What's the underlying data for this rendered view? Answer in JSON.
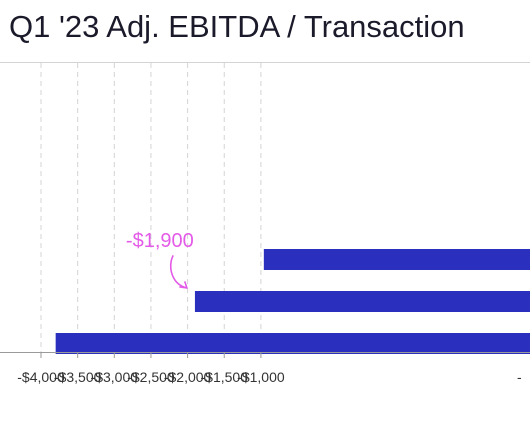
{
  "colors": {
    "bar": "#2b2fbd",
    "annotation": "#e45ae8",
    "grid": "#d4d4d4",
    "axis": "#9a9a9a",
    "title": "#1a1a2a"
  },
  "chart_data": {
    "type": "bar",
    "orientation": "horizontal",
    "title": "Q1 '23 Adj. EBITDA / Transaction",
    "xlabel": "",
    "ylabel": "",
    "grid": true,
    "xlim": [
      -4200,
      -700
    ],
    "ticks": [
      -4000,
      -3500,
      -3000,
      -2500,
      -2000,
      -1500,
      -1000
    ],
    "tick_labels": [
      "-$4,000",
      "-$3,500",
      "-$3,000",
      "-$2,500",
      "-$2,000",
      "-$1,500",
      "-$1,000"
    ],
    "series": [
      {
        "values": [
          -960,
          -1900,
          -3800
        ]
      }
    ],
    "annotation": {
      "text": "-$1,900",
      "bar_index": 1
    }
  }
}
